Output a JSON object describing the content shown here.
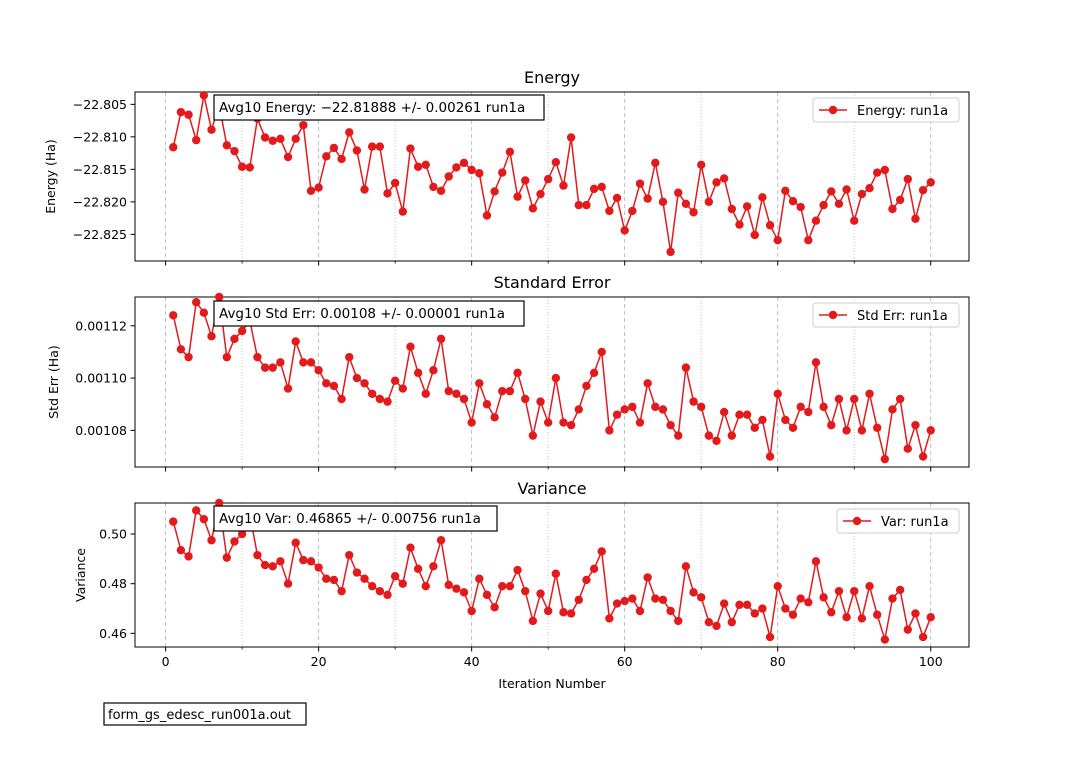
{
  "figure": {
    "footer_text": "form_gs_edesc_run001a.out",
    "xlabel": "Iteration Number",
    "x_ticks": [
      0,
      20,
      40,
      60,
      80,
      100
    ],
    "series_color": "#e31a1c"
  },
  "chart_data": [
    {
      "type": "line",
      "title": "Energy",
      "ylabel": "Energy (Ha)",
      "xlabel": "",
      "xlim": [
        -4,
        105
      ],
      "ylim": [
        -22.8291,
        -22.8031
      ],
      "y_ticks": [
        -22.825,
        -22.82,
        -22.815,
        -22.81,
        -22.805
      ],
      "y_tick_labels": [
        "−22.825",
        "−22.820",
        "−22.815",
        "−22.810",
        "−22.805"
      ],
      "grid": "vertical dashed at x ticks",
      "legend": "top-right",
      "annotation": "Avg10 Energy: −22.81888 +/- 0.00261  run1a",
      "series": [
        {
          "name": "Energy: run1a",
          "x": [
            1,
            2,
            3,
            4,
            5,
            6,
            7,
            8,
            9,
            10,
            11,
            12,
            13,
            14,
            15,
            16,
            17,
            18,
            19,
            20,
            21,
            22,
            23,
            24,
            25,
            26,
            27,
            28,
            29,
            30,
            31,
            32,
            33,
            34,
            35,
            36,
            37,
            38,
            39,
            40,
            41,
            42,
            43,
            44,
            45,
            46,
            47,
            48,
            49,
            50,
            51,
            52,
            53,
            54,
            55,
            56,
            57,
            58,
            59,
            60,
            61,
            62,
            63,
            64,
            65,
            66,
            67,
            68,
            69,
            70,
            71,
            72,
            73,
            74,
            75,
            76,
            77,
            78,
            79,
            80,
            81,
            82,
            83,
            84,
            85,
            86,
            87,
            88,
            89,
            90,
            91,
            92,
            93,
            94,
            95,
            96,
            97,
            98,
            99,
            100
          ],
          "values": [
            -22.8116,
            -22.8062,
            -22.8066,
            -22.8105,
            -22.8036,
            -22.8089,
            -22.8051,
            -22.8113,
            -22.8122,
            -22.8146,
            -22.8147,
            -22.8072,
            -22.8101,
            -22.8106,
            -22.8103,
            -22.8131,
            -22.8103,
            -22.8082,
            -22.8183,
            -22.8178,
            -22.813,
            -22.8117,
            -22.8134,
            -22.8093,
            -22.8121,
            -22.8181,
            -22.8115,
            -22.8115,
            -22.8187,
            -22.8171,
            -22.8215,
            -22.8118,
            -22.8146,
            -22.8143,
            -22.8177,
            -22.8183,
            -22.8161,
            -22.8147,
            -22.814,
            -22.8151,
            -22.8156,
            -22.8221,
            -22.8184,
            -22.8155,
            -22.8123,
            -22.8192,
            -22.8167,
            -22.821,
            -22.8188,
            -22.8165,
            -22.8139,
            -22.8175,
            -22.8101,
            -22.8205,
            -22.8205,
            -22.818,
            -22.8177,
            -22.8214,
            -22.8194,
            -22.8244,
            -22.8214,
            -22.8172,
            -22.8195,
            -22.814,
            -22.82,
            -22.8277,
            -22.8186,
            -22.8203,
            -22.8216,
            -22.8143,
            -22.82,
            -22.817,
            -22.8164,
            -22.8211,
            -22.8235,
            -22.8207,
            -22.8251,
            -22.8193,
            -22.8236,
            -22.8259,
            -22.8183,
            -22.8199,
            -22.8208,
            -22.8259,
            -22.8229,
            -22.8205,
            -22.8184,
            -22.8203,
            -22.8181,
            -22.8229,
            -22.8188,
            -22.8179,
            -22.8155,
            -22.8151,
            -22.8211,
            -22.8197,
            -22.8165,
            -22.8226,
            -22.8182,
            -22.817
          ]
        }
      ]
    },
    {
      "type": "line",
      "title": "Standard Error",
      "ylabel": "Std Err (Ha)",
      "xlabel": "",
      "xlim": [
        -4,
        105
      ],
      "ylim": [
        0.001066,
        0.001131
      ],
      "y_ticks": [
        0.00108,
        0.0011,
        0.00112
      ],
      "y_tick_labels": [
        "0.00108",
        "0.00110",
        "0.00112"
      ],
      "grid": "vertical dashed at x ticks",
      "legend": "top-right",
      "annotation": "Avg10 Std Err: 0.00108 +/- 0.00001  run1a",
      "series": [
        {
          "name": "Std Err: run1a",
          "x": [
            1,
            2,
            3,
            4,
            5,
            6,
            7,
            8,
            9,
            10,
            11,
            12,
            13,
            14,
            15,
            16,
            17,
            18,
            19,
            20,
            21,
            22,
            23,
            24,
            25,
            26,
            27,
            28,
            29,
            30,
            31,
            32,
            33,
            34,
            35,
            36,
            37,
            38,
            39,
            40,
            41,
            42,
            43,
            44,
            45,
            46,
            47,
            48,
            49,
            50,
            51,
            52,
            53,
            54,
            55,
            56,
            57,
            58,
            59,
            60,
            61,
            62,
            63,
            64,
            65,
            66,
            67,
            68,
            69,
            70,
            71,
            72,
            73,
            74,
            75,
            76,
            77,
            78,
            79,
            80,
            81,
            82,
            83,
            84,
            85,
            86,
            87,
            88,
            89,
            90,
            91,
            92,
            93,
            94,
            95,
            96,
            97,
            98,
            99,
            100
          ],
          "values": [
            0.001124,
            0.001111,
            0.001108,
            0.001129,
            0.001125,
            0.001116,
            0.001131,
            0.001108,
            0.001115,
            0.001118,
            0.001122,
            0.001108,
            0.001104,
            0.001104,
            0.001106,
            0.001096,
            0.001114,
            0.001106,
            0.001106,
            0.001103,
            0.001098,
            0.001097,
            0.001092,
            0.001108,
            0.0011,
            0.001098,
            0.001094,
            0.001092,
            0.001091,
            0.001099,
            0.001096,
            0.001112,
            0.001102,
            0.001094,
            0.001103,
            0.001115,
            0.001095,
            0.001094,
            0.001092,
            0.001083,
            0.001098,
            0.00109,
            0.001085,
            0.001095,
            0.001095,
            0.001102,
            0.001092,
            0.001078,
            0.001091,
            0.001083,
            0.0011,
            0.001083,
            0.001082,
            0.001088,
            0.001097,
            0.001102,
            0.00111,
            0.00108,
            0.001086,
            0.001088,
            0.001089,
            0.001083,
            0.001098,
            0.001089,
            0.001088,
            0.001082,
            0.001078,
            0.001104,
            0.001091,
            0.001089,
            0.001078,
            0.001076,
            0.001087,
            0.001078,
            0.001086,
            0.001086,
            0.001081,
            0.001084,
            0.00107,
            0.001094,
            0.001084,
            0.001081,
            0.001089,
            0.001087,
            0.001106,
            0.001089,
            0.001082,
            0.001092,
            0.00108,
            0.001092,
            0.00108,
            0.001094,
            0.001081,
            0.001069,
            0.001088,
            0.001092,
            0.001073,
            0.001082,
            0.00107,
            0.00108
          ]
        }
      ]
    },
    {
      "type": "line",
      "title": "Variance",
      "ylabel": "Variance",
      "xlabel": "Iteration Number",
      "xlim": [
        -4,
        105
      ],
      "ylim": [
        0.4545,
        0.5125
      ],
      "y_ticks": [
        0.46,
        0.48,
        0.5
      ],
      "y_tick_labels": [
        "0.46",
        "0.48",
        "0.50"
      ],
      "grid": "vertical dashed at x ticks",
      "legend": "top-right",
      "annotation": "Avg10 Var: 0.46865 +/- 0.00756  run1a",
      "series": [
        {
          "name": "Var: run1a",
          "x": [
            1,
            2,
            3,
            4,
            5,
            6,
            7,
            8,
            9,
            10,
            11,
            12,
            13,
            14,
            15,
            16,
            17,
            18,
            19,
            20,
            21,
            22,
            23,
            24,
            25,
            26,
            27,
            28,
            29,
            30,
            31,
            32,
            33,
            34,
            35,
            36,
            37,
            38,
            39,
            40,
            41,
            42,
            43,
            44,
            45,
            46,
            47,
            48,
            49,
            50,
            51,
            52,
            53,
            54,
            55,
            56,
            57,
            58,
            59,
            60,
            61,
            62,
            63,
            64,
            65,
            66,
            67,
            68,
            69,
            70,
            71,
            72,
            73,
            74,
            75,
            76,
            77,
            78,
            79,
            80,
            81,
            82,
            83,
            84,
            85,
            86,
            87,
            88,
            89,
            90,
            91,
            92,
            93,
            94,
            95,
            96,
            97,
            98,
            99,
            100
          ],
          "values": [
            0.505,
            0.4935,
            0.491,
            0.5095,
            0.506,
            0.4975,
            0.5125,
            0.4905,
            0.497,
            0.5,
            0.508,
            0.4915,
            0.4875,
            0.487,
            0.489,
            0.48,
            0.4965,
            0.4895,
            0.489,
            0.4865,
            0.482,
            0.4815,
            0.477,
            0.4915,
            0.4845,
            0.482,
            0.479,
            0.477,
            0.4755,
            0.483,
            0.48,
            0.4945,
            0.486,
            0.479,
            0.487,
            0.4975,
            0.4795,
            0.478,
            0.4765,
            0.469,
            0.482,
            0.4755,
            0.4705,
            0.479,
            0.479,
            0.4855,
            0.477,
            0.465,
            0.476,
            0.469,
            0.484,
            0.4685,
            0.468,
            0.4735,
            0.4815,
            0.486,
            0.493,
            0.466,
            0.472,
            0.473,
            0.474,
            0.469,
            0.4825,
            0.474,
            0.4735,
            0.469,
            0.465,
            0.487,
            0.4765,
            0.4745,
            0.4645,
            0.463,
            0.472,
            0.4645,
            0.4715,
            0.4715,
            0.468,
            0.47,
            0.4585,
            0.479,
            0.47,
            0.4675,
            0.474,
            0.4725,
            0.489,
            0.4745,
            0.4685,
            0.477,
            0.4665,
            0.477,
            0.466,
            0.479,
            0.4675,
            0.4575,
            0.474,
            0.4775,
            0.4615,
            0.468,
            0.4585,
            0.4665
          ]
        }
      ]
    }
  ]
}
